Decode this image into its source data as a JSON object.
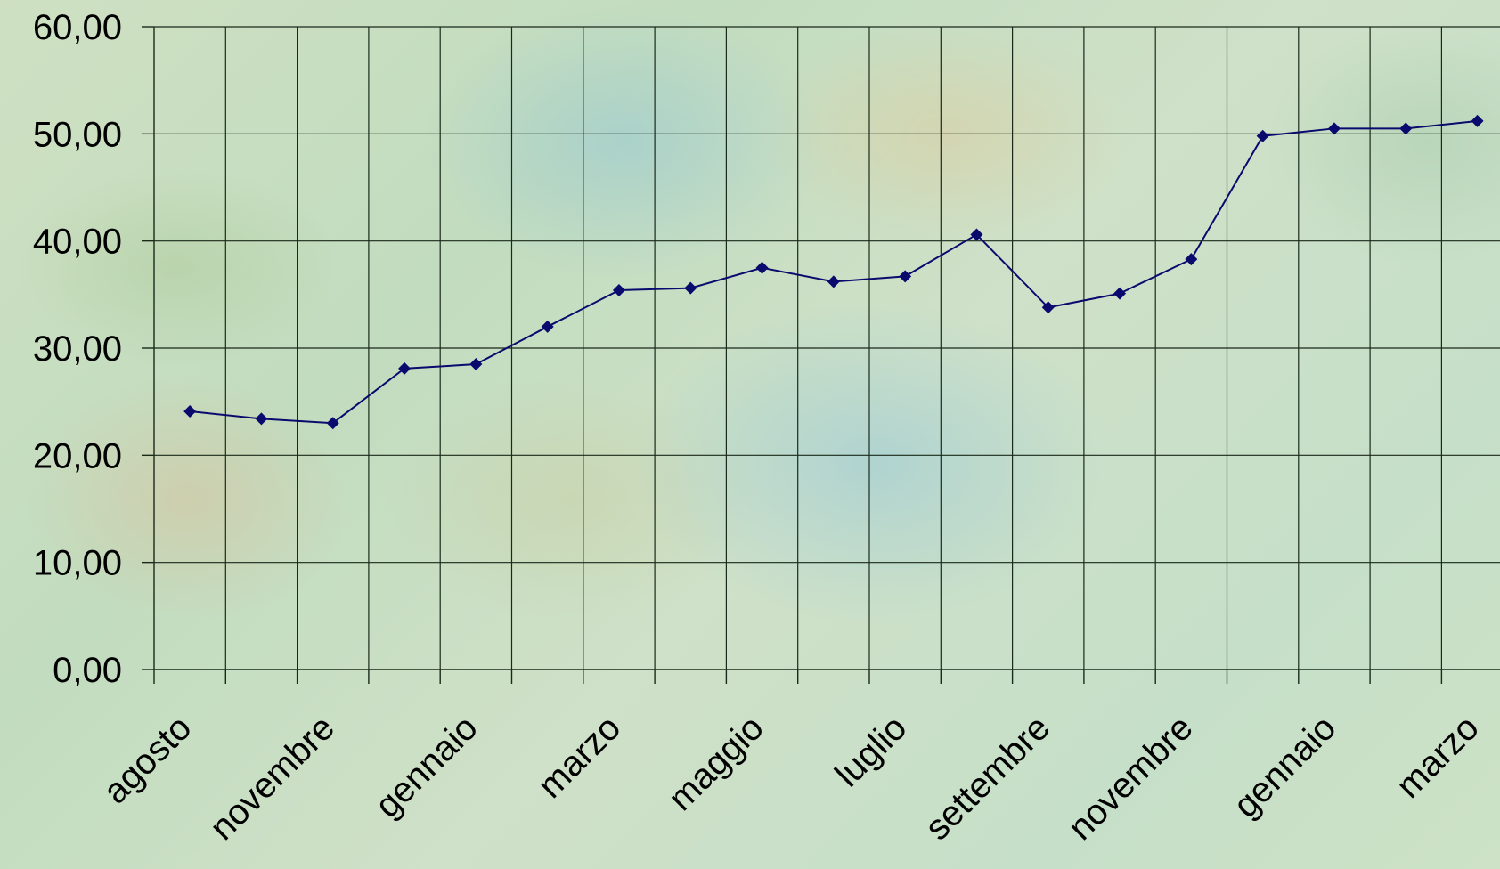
{
  "chart_data": {
    "type": "line",
    "title": "",
    "xlabel": "",
    "ylabel": "",
    "ylim": [
      0,
      60
    ],
    "yticks": [
      "0,00",
      "10,00",
      "20,00",
      "30,00",
      "40,00",
      "50,00",
      "60,00"
    ],
    "ytick_values": [
      0,
      10,
      20,
      30,
      40,
      50,
      60
    ],
    "xtick_labels": [
      "agosto",
      "novembre",
      "gennaio",
      "marzo",
      "maggio",
      "luglio",
      "settembre",
      "novembre",
      "gennaio",
      "marzo"
    ],
    "grid": true,
    "legend": "none",
    "series": [
      {
        "color": "#0a0a6e",
        "marker": "diamond",
        "values": [
          24.1,
          23.4,
          23.0,
          28.1,
          28.5,
          32.0,
          35.4,
          35.6,
          37.5,
          36.2,
          36.7,
          40.6,
          33.8,
          35.1,
          38.3,
          49.8,
          50.5,
          50.5,
          51.2
        ]
      }
    ]
  }
}
